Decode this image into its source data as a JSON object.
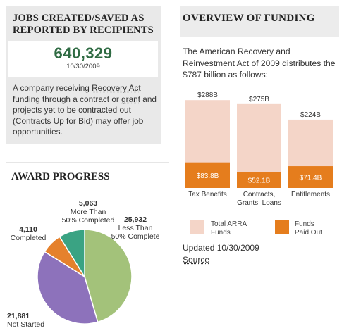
{
  "jobs": {
    "title": "JOBS CREATED/SAVED AS REPORTED BY RECIPIENTS",
    "number": "640,329",
    "date": "10/30/2009",
    "desc_part1": "A company receiving ",
    "recovery_act_link": "Recovery Act",
    "desc_part2": " funding through a contract or ",
    "grant_link": "grant",
    "desc_part3": " and projects yet to be contracted out (Contracts Up for Bid) may offer job opportunities."
  },
  "award": {
    "title": "AWARD PROGRESS",
    "labels": [
      {
        "value": "5,063",
        "text1": "More Than",
        "text2": "50% Completed"
      },
      {
        "value": "25,932",
        "text1": "Less Than",
        "text2": "50% Complete"
      },
      {
        "value": "4,110",
        "text1": "Completed",
        "text2": ""
      },
      {
        "value": "21,881",
        "text1": "Not Started",
        "text2": ""
      }
    ]
  },
  "funding": {
    "title": "OVERVIEW OF FUNDING",
    "intro": "The American Recovery and Reinvestment Act of 2009 distributes the $787 billion as follows:",
    "updated": "Updated 10/30/2009",
    "source_link": "Source"
  },
  "chart_data": [
    {
      "type": "pie",
      "title": "AWARD PROGRESS",
      "categories": [
        "Less Than 50% Complete",
        "Not Started",
        "Completed",
        "More Than 50% Completed"
      ],
      "values": [
        25932,
        21881,
        4110,
        5063
      ],
      "colors": [
        "#a3c27a",
        "#8d72bb",
        "#e5812c",
        "#3aa383"
      ]
    },
    {
      "type": "bar",
      "title": "OVERVIEW OF FUNDING",
      "categories": [
        "Tax Benefits",
        "Contracts, Grants, Loans",
        "Entitlements"
      ],
      "category_lines": [
        [
          "Tax Benefits"
        ],
        [
          "Contracts,",
          "Grants, Loans"
        ],
        [
          "Entitlements"
        ]
      ],
      "series": [
        {
          "name": "Total ARRA Funds",
          "values": [
            288,
            275,
            224
          ],
          "labels": [
            "$288B",
            "$275B",
            "$224B"
          ],
          "color": "#f4d5c8"
        },
        {
          "name": "Funds Paid Out",
          "values": [
            83.8,
            52.1,
            71.4
          ],
          "labels": [
            "$83.8B",
            "$52.1B",
            "$71.4B"
          ],
          "color": "#e57d1d"
        }
      ],
      "legend": [
        "Total ARRA Funds",
        "Funds Paid Out"
      ],
      "legend_lines": [
        [
          "Total ARRA",
          "Funds"
        ],
        [
          "Funds",
          "Paid Out"
        ]
      ],
      "ylim": [
        0,
        300
      ]
    }
  ]
}
